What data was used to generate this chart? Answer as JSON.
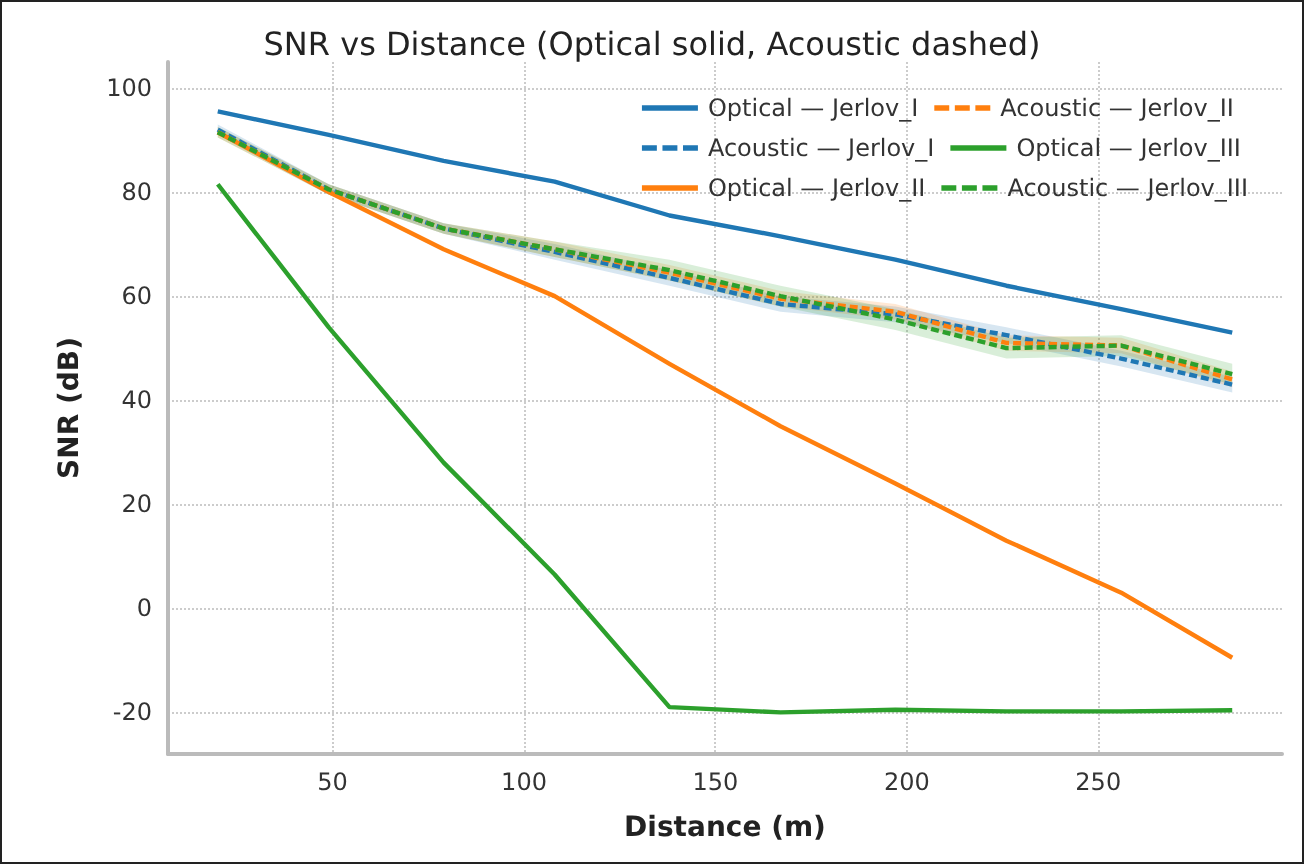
{
  "chart_data": {
    "type": "line",
    "title": "SNR vs Distance (Optical solid, Acoustic dashed)",
    "xlabel": "Distance (m)",
    "ylabel": "SNR (dB)",
    "x": [
      20,
      49,
      79,
      108,
      138,
      167,
      197,
      226,
      256,
      285
    ],
    "xlim": [
      7,
      298
    ],
    "xticks": [
      50,
      100,
      150,
      200,
      250
    ],
    "ylim": [
      -28,
      105
    ],
    "yticks": [
      -20,
      0,
      20,
      40,
      60,
      80,
      100
    ],
    "grid": true,
    "legend": "top right",
    "marker": "none",
    "series": [
      {
        "name": "Optical — Jerlov_I",
        "color": "#1f77b4",
        "line_style": "solid",
        "values": [
          95.5,
          91,
          86,
          82,
          75.5,
          71.5,
          67,
          62,
          57.5,
          53
        ]
      },
      {
        "name": "Acoustic — Jerlov_I",
        "color": "#1f77b4",
        "line_style": "dashed",
        "values": [
          92,
          80.5,
          73,
          68.5,
          63.5,
          58.5,
          56.5,
          52.5,
          48,
          43
        ],
        "lower": [
          91,
          79.5,
          72,
          67,
          62,
          57,
          55,
          51,
          46.5,
          41.5
        ],
        "upper": [
          93,
          81.5,
          74,
          70,
          65,
          60,
          58,
          54,
          49.5,
          44.5
        ]
      },
      {
        "name": "Optical — Jerlov_II",
        "color": "#ff7f0e",
        "line_style": "solid",
        "values": [
          91.5,
          80,
          69,
          60,
          47,
          35,
          24,
          13,
          3,
          -9.5
        ]
      },
      {
        "name": "Acoustic — Jerlov_II",
        "color": "#ff7f0e",
        "line_style": "dashed",
        "values": [
          91.5,
          80.5,
          73,
          69,
          64.5,
          59.5,
          57,
          51,
          50.5,
          44
        ],
        "lower": [
          90.5,
          79.5,
          72,
          67.5,
          63,
          58,
          55.5,
          49.5,
          49,
          42.5
        ],
        "upper": [
          92.5,
          81.5,
          74,
          70.5,
          66,
          61,
          58.5,
          52.5,
          52,
          45.5
        ]
      },
      {
        "name": "Optical — Jerlov_III",
        "color": "#2ca02c",
        "line_style": "solid",
        "values": [
          81.5,
          54,
          28,
          6.5,
          -19,
          -20,
          -19.5,
          -19.8,
          -19.8,
          -19.6
        ]
      },
      {
        "name": "Acoustic — Jerlov_III",
        "color": "#2ca02c",
        "line_style": "dashed",
        "values": [
          91.5,
          80.5,
          73,
          69,
          65,
          60,
          55.5,
          50,
          50.5,
          45
        ],
        "lower": [
          90.5,
          79.5,
          72,
          67.5,
          63,
          58,
          53.5,
          48,
          48.5,
          43
        ],
        "upper": [
          92.5,
          81.5,
          74,
          70.5,
          67,
          62,
          57.5,
          52,
          52.5,
          47
        ]
      }
    ]
  }
}
